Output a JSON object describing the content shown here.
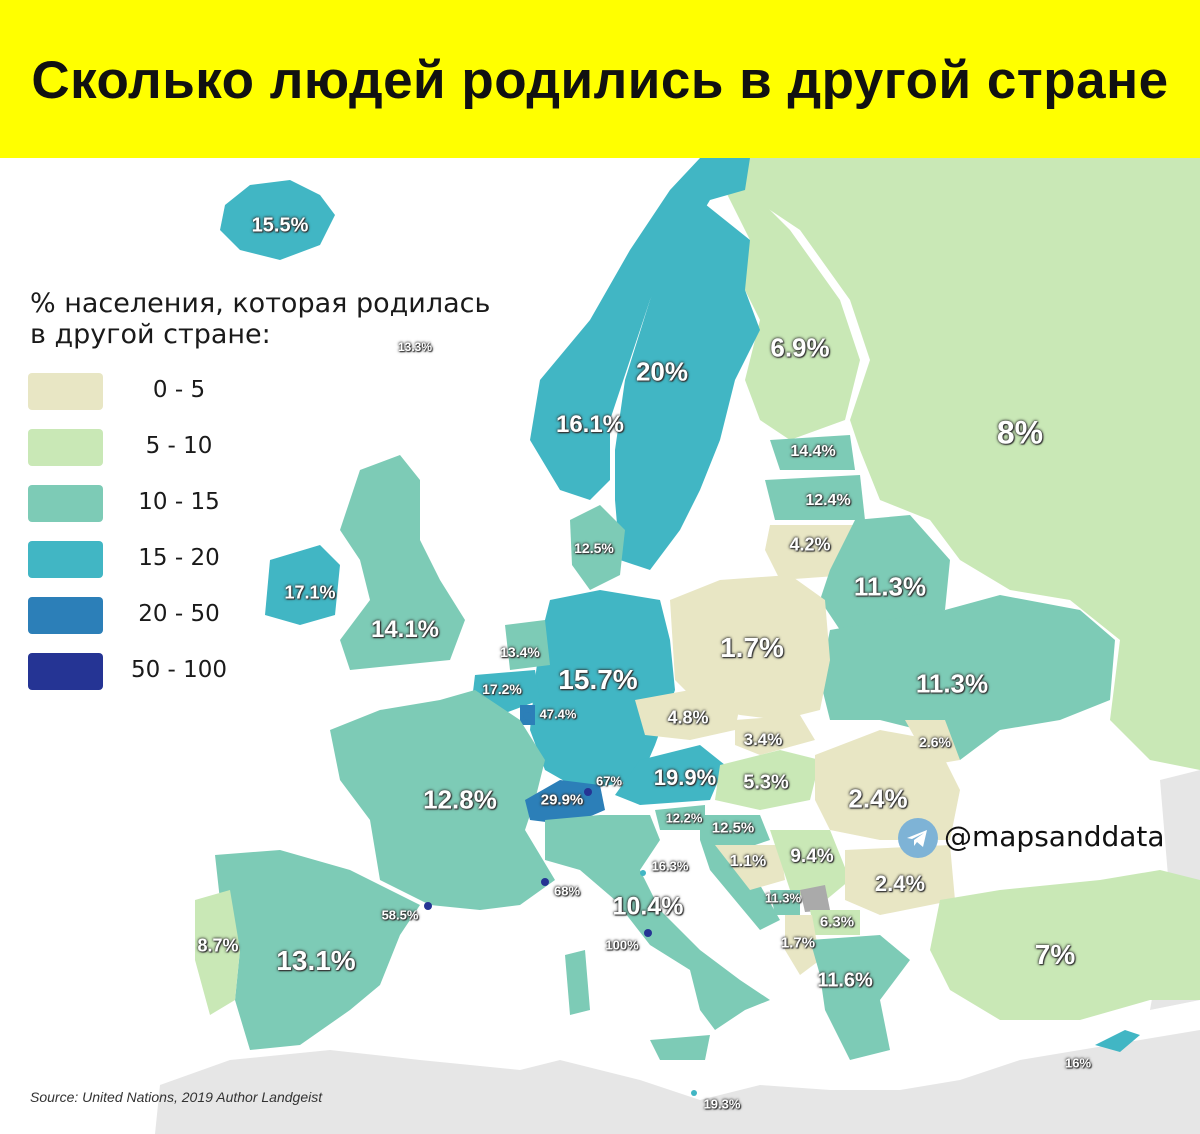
{
  "title": "Сколько людей родились в другой стране",
  "legend": {
    "title_line1": "% населения, которая родилась",
    "title_line2": "в другой стране:",
    "items": [
      {
        "range": "0 - 5",
        "color": "#e8e6c4"
      },
      {
        "range": "5 - 10",
        "color": "#c9e8b6"
      },
      {
        "range": "10 - 15",
        "color": "#7dcbb6"
      },
      {
        "range": "15 - 20",
        "color": "#41b6c4"
      },
      {
        "range": "20 - 50",
        "color": "#2c7fb8"
      },
      {
        "range": "50 - 100",
        "color": "#253494"
      }
    ]
  },
  "countries": [
    {
      "id": "iceland",
      "value": "15.5%"
    },
    {
      "id": "faroe",
      "value": "13.3%"
    },
    {
      "id": "norway",
      "value": "16.1%"
    },
    {
      "id": "sweden",
      "value": "20%"
    },
    {
      "id": "finland",
      "value": "6.9%"
    },
    {
      "id": "russia",
      "value": "8%"
    },
    {
      "id": "estonia",
      "value": "14.4%"
    },
    {
      "id": "latvia",
      "value": "12.4%"
    },
    {
      "id": "lithuania",
      "value": "4.2%"
    },
    {
      "id": "denmark",
      "value": "12.5%"
    },
    {
      "id": "ireland",
      "value": "17.1%"
    },
    {
      "id": "uk",
      "value": "14.1%"
    },
    {
      "id": "netherlands",
      "value": "13.4%"
    },
    {
      "id": "belgium",
      "value": "17.2%"
    },
    {
      "id": "luxembourg",
      "value": "47.4%"
    },
    {
      "id": "germany",
      "value": "15.7%"
    },
    {
      "id": "poland",
      "value": "1.7%"
    },
    {
      "id": "belarus",
      "value": "11.3%"
    },
    {
      "id": "ukraine",
      "value": "11.3%"
    },
    {
      "id": "czechia",
      "value": "4.8%"
    },
    {
      "id": "slovakia",
      "value": "3.4%"
    },
    {
      "id": "moldova",
      "value": "2.6%"
    },
    {
      "id": "austria",
      "value": "19.9%"
    },
    {
      "id": "hungary",
      "value": "5.3%"
    },
    {
      "id": "romania",
      "value": "2.4%"
    },
    {
      "id": "france",
      "value": "12.8%"
    },
    {
      "id": "switzerland",
      "value": "29.9%"
    },
    {
      "id": "liechtenstein",
      "value": "67%"
    },
    {
      "id": "slovenia",
      "value": "12.2%"
    },
    {
      "id": "croatia",
      "value": "12.5%"
    },
    {
      "id": "bosnia",
      "value": "1.1%"
    },
    {
      "id": "serbia",
      "value": "9.4%"
    },
    {
      "id": "bulgaria",
      "value": "2.4%"
    },
    {
      "id": "monaco",
      "value": "68%"
    },
    {
      "id": "san_marino",
      "value": "16.3%"
    },
    {
      "id": "montenegro",
      "value": "11.3%"
    },
    {
      "id": "north_macedonia",
      "value": "6.3%"
    },
    {
      "id": "albania",
      "value": "1.7%"
    },
    {
      "id": "andorra",
      "value": "58.5%"
    },
    {
      "id": "italy",
      "value": "10.4%"
    },
    {
      "id": "vatican",
      "value": "100%"
    },
    {
      "id": "portugal",
      "value": "8.7%"
    },
    {
      "id": "spain",
      "value": "13.1%"
    },
    {
      "id": "greece",
      "value": "11.6%"
    },
    {
      "id": "turkey",
      "value": "7%"
    },
    {
      "id": "cyprus",
      "value": "16%"
    },
    {
      "id": "malta",
      "value": "19.3%"
    }
  ],
  "watermark": "@mapsanddata",
  "source": "Source: United Nations, 2019  Author Landgeist"
}
